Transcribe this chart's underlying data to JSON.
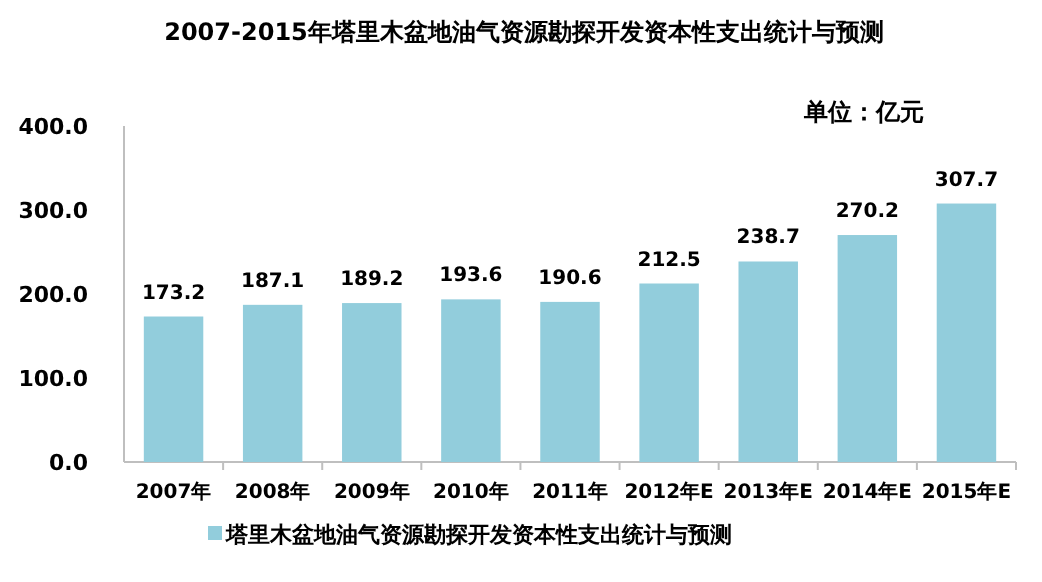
{
  "chart_data": {
    "type": "bar",
    "title": "2007-2015年塔里木盆地油气资源勘探开发资本性支出统计与预测",
    "subtitle": "单位：亿元",
    "categories": [
      "2007年",
      "2008年",
      "2009年",
      "2010年",
      "2011年",
      "2012年E",
      "2013年E",
      "2014年E",
      "2015年E"
    ],
    "series": [
      {
        "name": "塔里木盆地油气资源勘探开发资本性支出统计与预测",
        "color": "#92cddc",
        "values": [
          173.2,
          187.1,
          189.2,
          193.6,
          190.6,
          212.5,
          238.7,
          270.2,
          307.7
        ]
      }
    ],
    "ylim": [
      0,
      400
    ],
    "yticks": [
      {
        "value": 0,
        "label": "0.0"
      },
      {
        "value": 100,
        "label": "100.0"
      },
      {
        "value": 200,
        "label": "200.0"
      },
      {
        "value": 300,
        "label": "300.0"
      },
      {
        "value": 400,
        "label": "400.0"
      }
    ],
    "data_labels": true,
    "legend": "bottom",
    "grid": false
  }
}
